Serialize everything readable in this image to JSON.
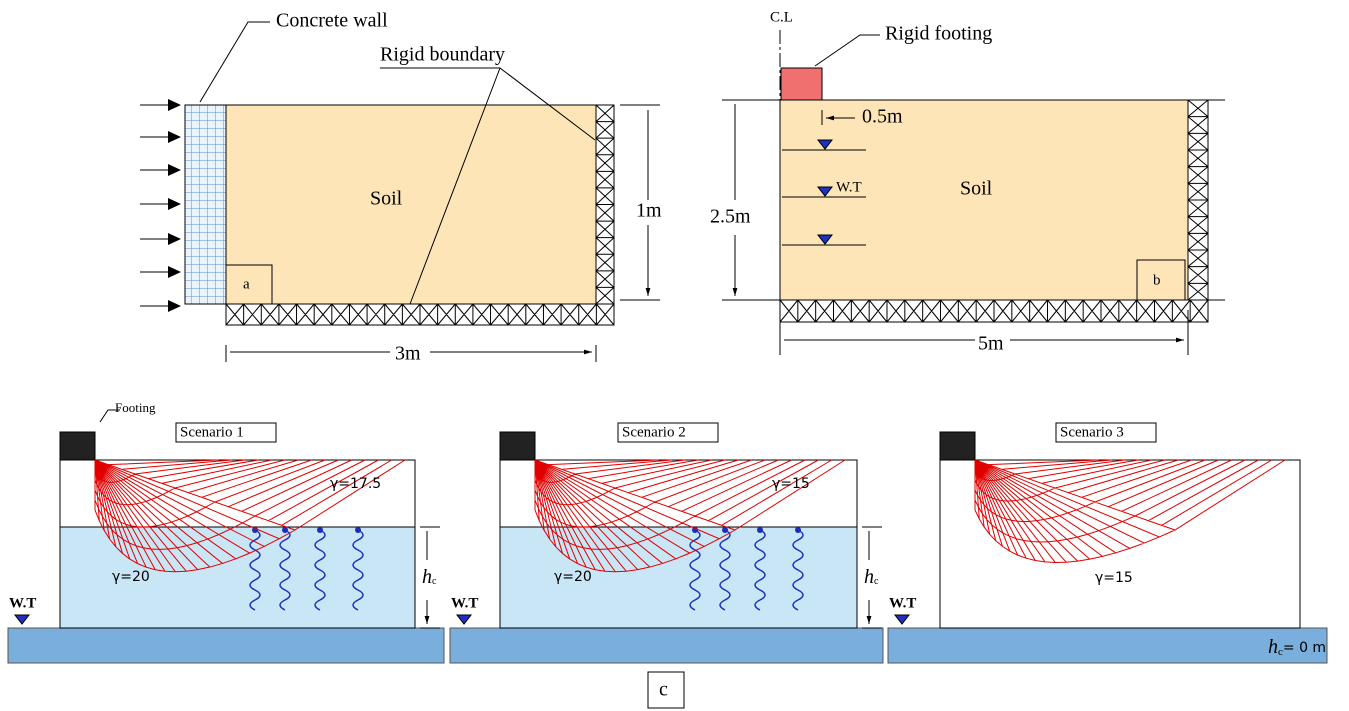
{
  "panel_a": {
    "wall_label": "Concrete wall",
    "boundary_label": "Rigid boundary",
    "soil_label": "Soil",
    "height": "1m",
    "width": "3m",
    "tag": "a"
  },
  "panel_b": {
    "centerline": "C.L",
    "footing_label": "Rigid footing",
    "offset": "0.5m",
    "water_table": "W.T",
    "soil_label": "Soil",
    "height": "2.5m",
    "width": "5m",
    "tag": "b"
  },
  "panel_c": {
    "footing_label": "Footing",
    "tag": "c",
    "scenarios": [
      {
        "title": "Scenario 1",
        "gamma_top": "γ=17.5",
        "gamma_bottom": "γ=20",
        "hc": {
          "main": "h",
          "sub": "c"
        },
        "water_table": "W.T"
      },
      {
        "title": "Scenario 2",
        "gamma_top": "γ=15",
        "gamma_bottom": "γ=20",
        "hc": {
          "main": "h",
          "sub": "c"
        },
        "water_table": "W.T"
      },
      {
        "title": "Scenario 3",
        "gamma_top": "γ=15",
        "hc": {
          "main": "h",
          "sub": "c",
          "rest": "= 0 m"
        },
        "water_table": "W.T"
      }
    ]
  }
}
